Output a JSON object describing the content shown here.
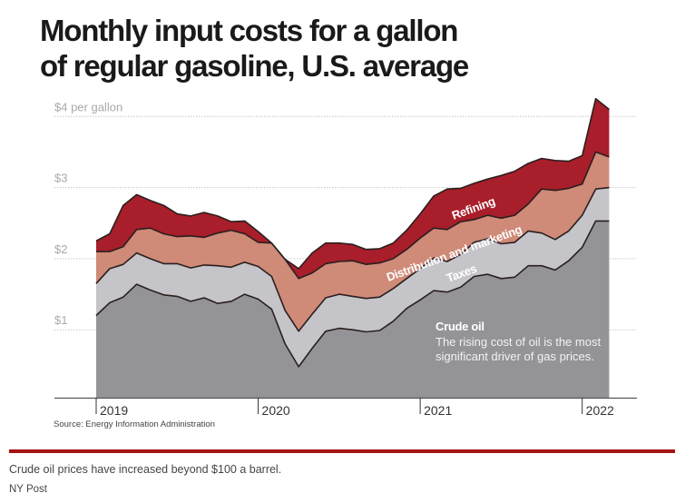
{
  "header": {
    "title_line1": "Monthly input costs for a gallon",
    "title_line2": "of regular gasoline, U.S. average"
  },
  "footer": {
    "source": "Source: Energy Information Administration",
    "caption": "Crude oil prices have increased beyond $100 a barrel.",
    "credit": "NY Post"
  },
  "colors": {
    "crude_oil": "#949398",
    "taxes": "#c5c4c9",
    "distribution": "#cf8a78",
    "refining": "#a81e2a",
    "outline": "#2a1f1f",
    "rule": "#a51313"
  },
  "chart_data": {
    "type": "area",
    "stacked": true,
    "title": "Monthly input costs for a gallon of regular gasoline, U.S. average",
    "xlabel": "",
    "ylabel": "$ per gallon",
    "ylim": [
      0,
      4.3
    ],
    "yticks": [
      {
        "value": 1,
        "label": "$1"
      },
      {
        "value": 2,
        "label": "$2"
      },
      {
        "value": 3,
        "label": "$3"
      },
      {
        "value": 4,
        "label": "$4 per gallon"
      }
    ],
    "xticks": [
      {
        "index": 0,
        "label": "2019"
      },
      {
        "index": 12,
        "label": "2020"
      },
      {
        "index": 24,
        "label": "2021"
      },
      {
        "index": 36,
        "label": "2022"
      }
    ],
    "grid": true,
    "x": [
      "2019-01",
      "2019-02",
      "2019-03",
      "2019-04",
      "2019-05",
      "2019-06",
      "2019-07",
      "2019-08",
      "2019-09",
      "2019-10",
      "2019-11",
      "2019-12",
      "2020-01",
      "2020-02",
      "2020-03",
      "2020-04",
      "2020-05",
      "2020-06",
      "2020-07",
      "2020-08",
      "2020-09",
      "2020-10",
      "2020-11",
      "2020-12",
      "2021-01",
      "2021-02",
      "2021-03",
      "2021-04",
      "2021-05",
      "2021-06",
      "2021-07",
      "2021-08",
      "2021-09",
      "2021-10",
      "2021-11",
      "2021-12",
      "2022-01",
      "2022-02",
      "2022-03"
    ],
    "series": [
      {
        "name": "Crude oil",
        "values": [
          1.2,
          1.38,
          1.46,
          1.64,
          1.56,
          1.49,
          1.47,
          1.4,
          1.45,
          1.37,
          1.4,
          1.5,
          1.43,
          1.29,
          0.8,
          0.48,
          0.74,
          0.98,
          1.02,
          1.0,
          0.97,
          0.99,
          1.12,
          1.3,
          1.42,
          1.55,
          1.53,
          1.6,
          1.75,
          1.78,
          1.72,
          1.74,
          1.9,
          1.9,
          1.84,
          1.97,
          2.16,
          2.53,
          2.53
        ]
      },
      {
        "name": "Taxes",
        "values": [
          0.45,
          0.48,
          0.46,
          0.44,
          0.44,
          0.44,
          0.46,
          0.47,
          0.46,
          0.53,
          0.48,
          0.45,
          0.46,
          0.46,
          0.47,
          0.5,
          0.48,
          0.47,
          0.48,
          0.47,
          0.47,
          0.47,
          0.46,
          0.42,
          0.44,
          0.46,
          0.43,
          0.46,
          0.48,
          0.5,
          0.49,
          0.49,
          0.49,
          0.46,
          0.43,
          0.42,
          0.45,
          0.45,
          0.47
        ]
      },
      {
        "name": "Distribution and marketing",
        "values": [
          0.45,
          0.24,
          0.25,
          0.33,
          0.43,
          0.42,
          0.38,
          0.45,
          0.39,
          0.46,
          0.52,
          0.4,
          0.34,
          0.47,
          0.72,
          0.74,
          0.58,
          0.48,
          0.46,
          0.5,
          0.48,
          0.48,
          0.42,
          0.41,
          0.43,
          0.42,
          0.45,
          0.46,
          0.32,
          0.33,
          0.36,
          0.38,
          0.38,
          0.62,
          0.69,
          0.6,
          0.44,
          0.52,
          0.43
        ]
      },
      {
        "name": "Refining",
        "values": [
          0.15,
          0.25,
          0.58,
          0.49,
          0.39,
          0.4,
          0.32,
          0.28,
          0.35,
          0.24,
          0.12,
          0.18,
          0.15,
          0.0,
          0.0,
          0.14,
          0.28,
          0.29,
          0.26,
          0.23,
          0.21,
          0.2,
          0.22,
          0.27,
          0.34,
          0.45,
          0.57,
          0.47,
          0.51,
          0.51,
          0.6,
          0.62,
          0.57,
          0.43,
          0.42,
          0.38,
          0.4,
          0.75,
          0.67
        ]
      }
    ],
    "annotations": [
      {
        "layer": "Refining",
        "text": "Refining"
      },
      {
        "layer": "Distribution and marketing",
        "text": "Distribution and marketing"
      },
      {
        "layer": "Taxes",
        "text": "Taxes"
      },
      {
        "layer": "Crude oil",
        "title": "Crude oil",
        "text_line1": "The rising cost of oil is the most",
        "text_line2": "significant driver of gas prices."
      }
    ]
  }
}
